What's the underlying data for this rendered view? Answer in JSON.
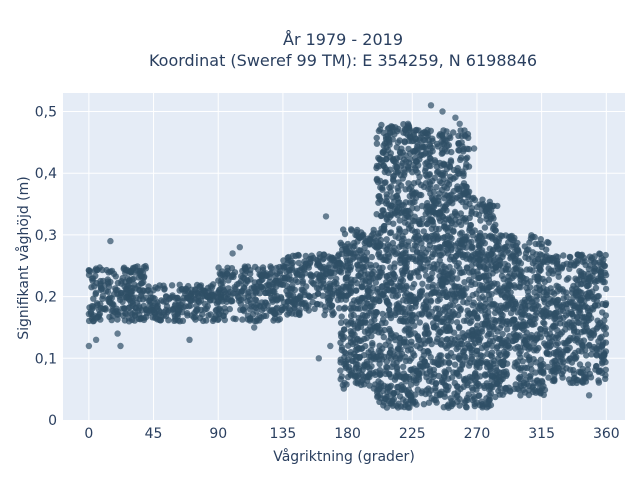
{
  "chart_data": {
    "type": "scatter",
    "title_lines": [
      "År 1979 - 2019",
      "Koordinat (Sweref 99 TM): E 354259, N 6198846"
    ],
    "xlabel": "Vågriktning (grader)",
    "ylabel": "Signifikant våghöjd (m)",
    "xlim": [
      -18,
      373
    ],
    "ylim": [
      0,
      0.53
    ],
    "x_ticks": [
      0,
      45,
      90,
      135,
      180,
      225,
      270,
      315,
      360
    ],
    "x_tick_labels": [
      "0",
      "45",
      "90",
      "135",
      "180",
      "225",
      "270",
      "315",
      "360"
    ],
    "y_ticks": [
      0,
      0.1,
      0.2,
      0.3,
      0.4,
      0.5
    ],
    "y_tick_labels": [
      "0",
      "0,1",
      "0,2",
      "0,3",
      "0,4",
      "0,5"
    ],
    "grid": true,
    "marker_color": "#2f4f66",
    "series": [
      {
        "values_summary": [
          {
            "x_from": 0,
            "x_to": 40,
            "y_min": 0.16,
            "y_max": 0.25
          },
          {
            "x_from": 40,
            "x_to": 90,
            "y_min": 0.16,
            "y_max": 0.22
          },
          {
            "x_from": 90,
            "x_to": 135,
            "y_min": 0.16,
            "y_max": 0.25
          },
          {
            "x_from": 135,
            "x_to": 175,
            "y_min": 0.17,
            "y_max": 0.27
          },
          {
            "x_from": 175,
            "x_to": 200,
            "y_min": 0.05,
            "y_max": 0.31
          },
          {
            "x_from": 200,
            "x_to": 225,
            "y_min": 0.02,
            "y_max": 0.48
          },
          {
            "x_from": 225,
            "x_to": 265,
            "y_min": 0.02,
            "y_max": 0.47
          },
          {
            "x_from": 265,
            "x_to": 285,
            "y_min": 0.02,
            "y_max": 0.36
          },
          {
            "x_from": 285,
            "x_to": 320,
            "y_min": 0.04,
            "y_max": 0.3
          },
          {
            "x_from": 320,
            "x_to": 360,
            "y_min": 0.06,
            "y_max": 0.27
          }
        ],
        "points": [
          [
            0,
            0.12
          ],
          [
            5,
            0.13
          ],
          [
            15,
            0.29
          ],
          [
            20,
            0.14
          ],
          [
            22,
            0.12
          ],
          [
            28,
            0.16
          ],
          [
            70,
            0.13
          ],
          [
            100,
            0.27
          ],
          [
            105,
            0.28
          ],
          [
            115,
            0.15
          ],
          [
            165,
            0.33
          ],
          [
            168,
            0.12
          ],
          [
            160,
            0.1
          ],
          [
            175,
            0.08
          ],
          [
            178,
            0.06
          ],
          [
            238,
            0.51
          ],
          [
            246,
            0.5
          ],
          [
            222,
            0.48
          ],
          [
            228,
            0.47
          ],
          [
            255,
            0.49
          ],
          [
            258,
            0.48
          ],
          [
            262,
            0.46
          ],
          [
            268,
            0.44
          ],
          [
            215,
            0.45
          ],
          [
            330,
            0.11
          ],
          [
            335,
            0.1
          ],
          [
            345,
            0.07
          ],
          [
            348,
            0.04
          ],
          [
            356,
            0.08
          ],
          [
            357,
            0.12
          ],
          [
            310,
            0.06
          ],
          [
            290,
            0.05
          ],
          [
            300,
            0.07
          ]
        ]
      }
    ]
  }
}
